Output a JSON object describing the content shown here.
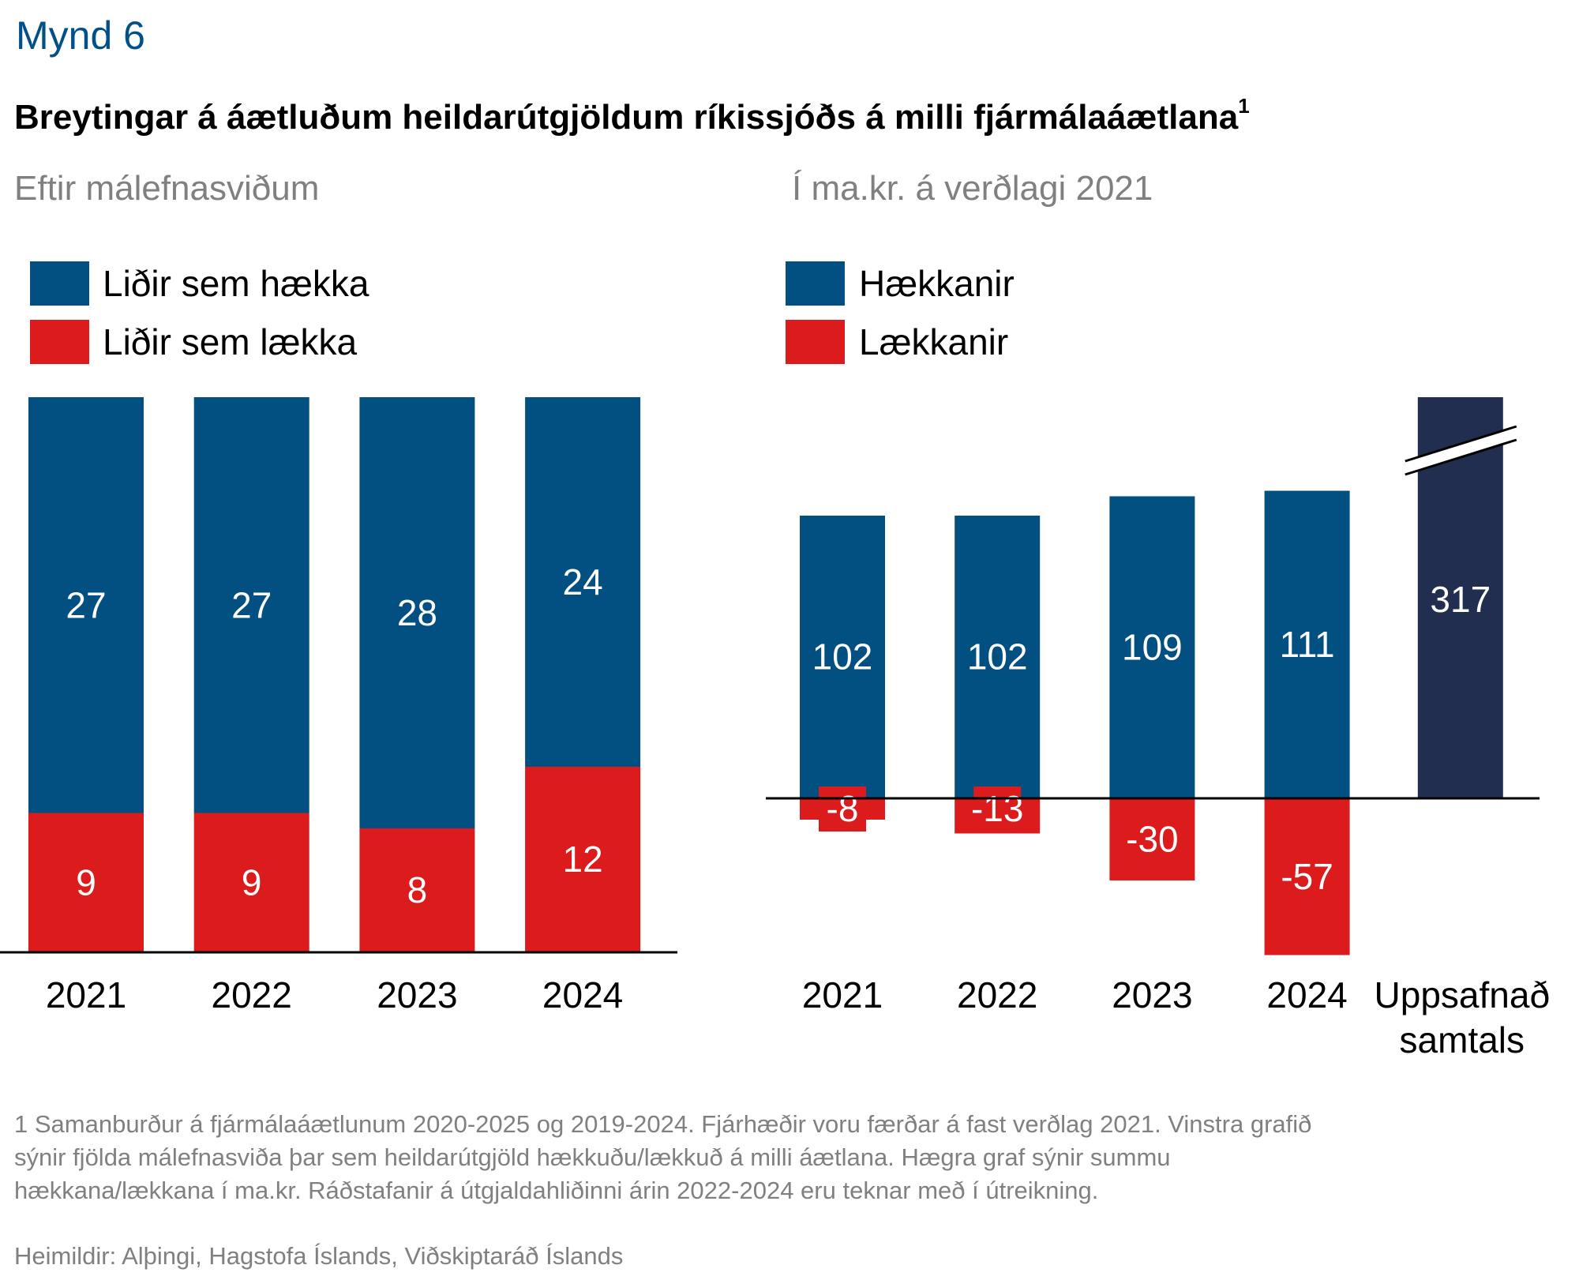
{
  "figure_label": "Mynd 6",
  "title": "Breytingar á áætluðum heildarútgjöldum ríkissjóðs á milli fjármálaáætlana",
  "title_footnote_marker": "1",
  "colors": {
    "increase": "#024f82",
    "decrease": "#dc1b1c",
    "total": "#222e4f",
    "axis": "#000000",
    "figure_label": "#00508a",
    "muted_text": "#808080"
  },
  "chart_data": [
    {
      "type": "bar",
      "stacked": true,
      "subtitle": "Eftir málefnasviðum",
      "legend": [
        "Liðir sem hækka",
        "Liðir sem lækka"
      ],
      "legend_position": "top-left",
      "categories": [
        "2021",
        "2022",
        "2023",
        "2024"
      ],
      "series": [
        {
          "name": "Liðir sem lækka",
          "values": [
            9,
            9,
            8,
            12
          ]
        },
        {
          "name": "Liðir sem hækka",
          "values": [
            27,
            27,
            28,
            24
          ]
        }
      ],
      "ylim": [
        0,
        36
      ],
      "grid": false,
      "data_labels": true
    },
    {
      "type": "bar",
      "stacked": false,
      "subtitle": "Í ma.kr. á verðlagi 2021",
      "legend": [
        "Hækkanir",
        "Lækkanir"
      ],
      "legend_position": "top-left",
      "categories": [
        "2021",
        "2022",
        "2023",
        "2024",
        "Uppsafnað samtals"
      ],
      "category_lines": [
        [
          "2021"
        ],
        [
          "2022"
        ],
        [
          "2023"
        ],
        [
          "2024"
        ],
        [
          "Uppsafnað",
          "samtals"
        ]
      ],
      "series": [
        {
          "name": "Hækkanir",
          "values": [
            102,
            102,
            109,
            111,
            null
          ]
        },
        {
          "name": "Lækkanir",
          "values": [
            -8,
            -13,
            -30,
            -57,
            null
          ]
        },
        {
          "name": "Uppsafnað samtals",
          "values": [
            null,
            null,
            null,
            null,
            317
          ]
        }
      ],
      "axis_break_on_total": true,
      "ylim": [
        -57,
        114
      ],
      "grid": false,
      "data_labels": true
    }
  ],
  "footnote": {
    "lines": [
      "1 Samanburður á fjármálaáætlunum 2020-2025 og 2019-2024. Fjárhæðir voru færðar á fast verðlag 2021. Vinstra grafið",
      "sýnir fjölda málefnasviða þar sem heildarútgjöld hækkuðu/lækkuð á milli áætlana. Hægra graf sýnir summu",
      "hækkana/lækkana í ma.kr. Ráðstafanir á útgjaldahliðinni árin 2022-2024 eru teknar með í útreikning."
    ],
    "source": "Heimildir: Alþingi, Hagstofa Íslands, Viðskiptaráð Íslands"
  }
}
